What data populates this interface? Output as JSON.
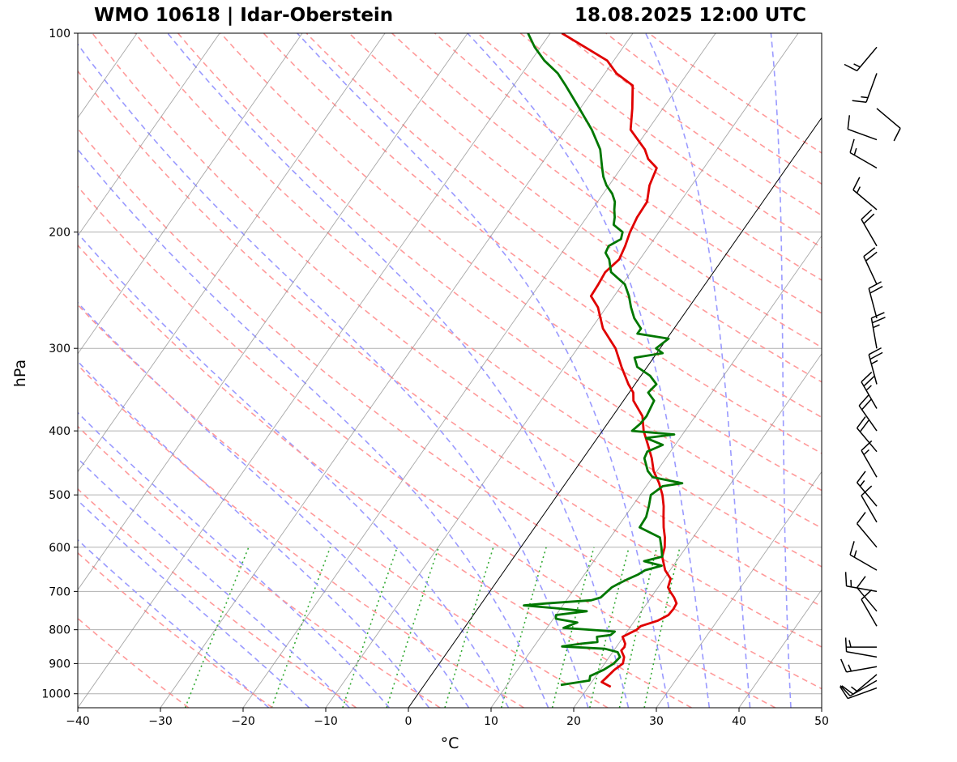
{
  "header": {
    "station": "WMO 10618 | Idar-Oberstein",
    "time": "18.08.2025 12:00 UTC"
  },
  "chart_data": {
    "type": "line",
    "title": "WMO 10618 | Idar-Oberstein",
    "subtitle": "18.08.2025 12:00 UTC",
    "xlabel": "°C",
    "ylabel": "hPa",
    "xlim": [
      -40,
      50
    ],
    "ylim": [
      1050,
      100
    ],
    "y_scale": "log",
    "x_ticks": [
      "−40",
      "−30",
      "−20",
      "−10",
      "0",
      "10",
      "20",
      "30",
      "40",
      "50"
    ],
    "y_ticks": [
      "100",
      "200",
      "300",
      "400",
      "500",
      "600",
      "700",
      "800",
      "900",
      "1000"
    ],
    "grid": true,
    "skew": "skew-T log-P",
    "colors": {
      "temperature": "#e00000",
      "dewpoint": "#007700",
      "dry_adiabats": "#ff9a9a",
      "moist_adiabats": "#9a9aff",
      "mixing_ratio": "#33aa33",
      "isotherms": "#888888"
    },
    "series": [
      {
        "id": "temperature",
        "p": [
          976,
          960,
          945,
          920,
          900,
          880,
          860,
          850,
          840,
          820,
          800,
          790,
          775,
          760,
          745,
          730,
          715,
          700,
          690,
          670,
          650,
          630,
          620,
          600,
          580,
          560,
          540,
          520,
          500,
          480,
          460,
          440,
          420,
          400,
          380,
          360,
          350,
          340,
          320,
          300,
          280,
          260,
          250,
          240,
          230,
          220,
          210,
          200,
          190,
          180,
          170,
          160,
          155,
          150,
          140,
          130,
          120,
          115,
          110,
          105,
          100
        ],
        "values": [
          22.7,
          21.2,
          21.4,
          21.7,
          22.2,
          21.8,
          20.9,
          21.0,
          20.8,
          19.9,
          21.0,
          21.2,
          22.8,
          23.6,
          23.7,
          23.6,
          22.8,
          21.8,
          21.2,
          20.8,
          19.4,
          18.4,
          17.9,
          17.4,
          16.6,
          15.6,
          14.7,
          13.8,
          12.7,
          11.3,
          9.6,
          8.3,
          6.7,
          5.0,
          3.6,
          1.2,
          0.5,
          -0.8,
          -3.1,
          -5.4,
          -8.6,
          -11.0,
          -12.8,
          -12.9,
          -13.1,
          -12.5,
          -12.9,
          -13.5,
          -13.9,
          -14.0,
          -15.1,
          -15.7,
          -17.5,
          -18.7,
          -22.1,
          -23.7,
          -25.6,
          -28.6,
          -30.8,
          -34.6,
          -38.6
        ]
      },
      {
        "id": "dewpoint",
        "p": [
          970,
          955,
          940,
          920,
          900,
          880,
          865,
          855,
          848,
          840,
          835,
          820,
          815,
          805,
          795,
          780,
          770,
          760,
          750,
          742,
          735,
          730,
          722,
          715,
          700,
          690,
          680,
          670,
          660,
          650,
          640,
          630,
          620,
          600,
          580,
          560,
          540,
          520,
          500,
          485,
          480,
          470,
          460,
          440,
          430,
          420,
          410,
          405,
          400,
          390,
          380,
          360,
          350,
          340,
          330,
          320,
          310,
          305,
          300,
          290,
          285,
          280,
          270,
          260,
          250,
          240,
          230,
          220,
          215,
          210,
          205,
          200,
          195,
          190,
          185,
          180,
          175,
          170,
          165,
          160,
          150,
          140,
          130,
          120,
          115,
          110,
          105,
          100
        ],
        "values": [
          16.5,
          19.6,
          19.3,
          20.4,
          21.1,
          21.3,
          20.6,
          18.8,
          13.4,
          15.5,
          17.3,
          16.8,
          18.3,
          18.5,
          12.0,
          13.2,
          10.3,
          10.0,
          13.4,
          9.3,
          5.3,
          7.8,
          13.0,
          13.9,
          14.2,
          14.4,
          15.0,
          15.7,
          16.5,
          17.0,
          18.6,
          16.1,
          17.9,
          17.0,
          16.0,
          12.7,
          12.6,
          12.0,
          11.3,
          12.0,
          14.1,
          10.0,
          8.9,
          7.4,
          7.2,
          8.5,
          5.9,
          9.0,
          3.6,
          4.0,
          4.1,
          3.7,
          2.3,
          2.6,
          1.1,
          -1.2,
          -2.3,
          0.7,
          -0.5,
          0.2,
          -4.0,
          -4.0,
          -5.7,
          -7.0,
          -8.2,
          -9.7,
          -12.4,
          -13.7,
          -14.7,
          -14.9,
          -14.0,
          -14.4,
          -16.1,
          -16.6,
          -17.3,
          -17.9,
          -18.9,
          -20.3,
          -21.4,
          -22.3,
          -24.1,
          -26.8,
          -30.1,
          -33.7,
          -35.7,
          -38.4,
          -40.7,
          -42.7
        ]
      }
    ],
    "wind_barbs": [
      {
        "p": 980,
        "speed_kt": 10,
        "dir_deg": 250
      },
      {
        "p": 955,
        "speed_kt": 10,
        "dir_deg": 240
      },
      {
        "p": 935,
        "speed_kt": 15,
        "dir_deg": 230
      },
      {
        "p": 910,
        "speed_kt": 15,
        "dir_deg": 260
      },
      {
        "p": 880,
        "speed_kt": 10,
        "dir_deg": 280
      },
      {
        "p": 850,
        "speed_kt": 5,
        "dir_deg": 270
      },
      {
        "p": 790,
        "speed_kt": 10,
        "dir_deg": 330
      },
      {
        "p": 750,
        "speed_kt": 10,
        "dir_deg": 320
      },
      {
        "p": 700,
        "speed_kt": 15,
        "dir_deg": 280
      },
      {
        "p": 650,
        "speed_kt": 15,
        "dir_deg": 300
      },
      {
        "p": 600,
        "speed_kt": 10,
        "dir_deg": 320
      },
      {
        "p": 550,
        "speed_kt": 10,
        "dir_deg": 330
      },
      {
        "p": 520,
        "speed_kt": 15,
        "dir_deg": 320
      },
      {
        "p": 470,
        "speed_kt": 15,
        "dir_deg": 330
      },
      {
        "p": 430,
        "speed_kt": 20,
        "dir_deg": 320
      },
      {
        "p": 400,
        "speed_kt": 20,
        "dir_deg": 325
      },
      {
        "p": 370,
        "speed_kt": 25,
        "dir_deg": 330
      },
      {
        "p": 340,
        "speed_kt": 25,
        "dir_deg": 345
      },
      {
        "p": 300,
        "speed_kt": 25,
        "dir_deg": 350
      },
      {
        "p": 270,
        "speed_kt": 20,
        "dir_deg": 345
      },
      {
        "p": 240,
        "speed_kt": 20,
        "dir_deg": 335
      },
      {
        "p": 210,
        "speed_kt": 20,
        "dir_deg": 330
      },
      {
        "p": 185,
        "speed_kt": 15,
        "dir_deg": 310
      },
      {
        "p": 160,
        "speed_kt": 15,
        "dir_deg": 300
      },
      {
        "p": 145,
        "speed_kt": 10,
        "dir_deg": 290
      },
      {
        "p": 130,
        "speed_kt": 10,
        "dir_deg": 130
      },
      {
        "p": 115,
        "speed_kt": 15,
        "dir_deg": 200
      },
      {
        "p": 105,
        "speed_kt": 15,
        "dir_deg": 220
      }
    ]
  }
}
